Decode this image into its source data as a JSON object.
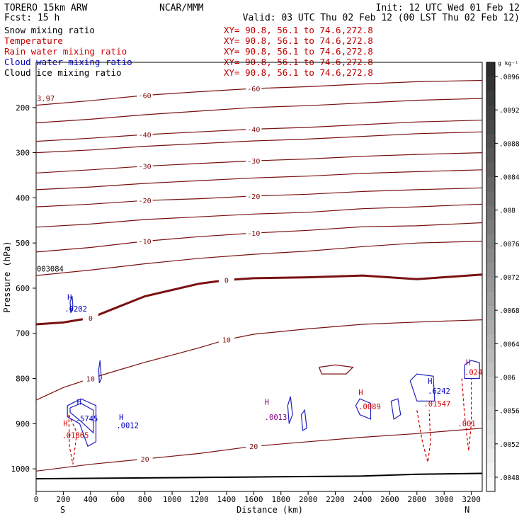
{
  "header": {
    "left_line1": "TORERO  15km ARW",
    "left_line2": "Fcst:   15 h",
    "center_line1": "NCAR/MMM",
    "right_line1": "Init: 12 UTC Wed 01 Feb 12",
    "right_line2": "Valid: 03 UTC Thu 02 Feb 12 (00 LST Thu 02 Feb 12)"
  },
  "fields": [
    {
      "name": "Snow mixing ratio",
      "xy": "XY=  90.8, 56.1 to  74.6,272.8",
      "color": "#000000"
    },
    {
      "name": "Temperature",
      "xy": "XY=  90.8, 56.1 to  74.6,272.8",
      "color": "#c00000"
    },
    {
      "name": "Rain water mixing ratio",
      "xy": "XY=  90.8, 56.1 to  74.6,272.8",
      "color": "#d00000"
    },
    {
      "name": "Cloud water mixing ratio",
      "xy": "XY=  90.8, 56.1 to  74.6,272.8",
      "color": "#0000c0"
    },
    {
      "name": "Cloud ice mixing ratio",
      "xy": "XY=  90.8, 56.1 to  74.6,272.8",
      "color": "#000000"
    }
  ],
  "chart_data": {
    "type": "contour",
    "xlabel": "Distance (km)",
    "ylabel": "Pressure (hPa)",
    "xlim": [
      0,
      3280
    ],
    "ylim": [
      1050,
      100
    ],
    "x_ticks": [
      0,
      200,
      400,
      600,
      800,
      1000,
      1200,
      1400,
      1600,
      1800,
      2000,
      2200,
      2400,
      2600,
      2800,
      3000,
      3200
    ],
    "y_ticks": [
      200,
      300,
      400,
      500,
      600,
      700,
      800,
      900,
      1000
    ],
    "x_end_labels": [
      "S",
      "N"
    ],
    "colorbar": {
      "unit": "g kg⁻¹",
      "ticks": [
        ".0048",
        ".0052",
        ".0056",
        ".006",
        ".0064",
        ".0068",
        ".0072",
        ".0076",
        ".008",
        ".0084",
        ".0088",
        ".0092",
        ".0096"
      ]
    },
    "temperature_contours": [
      {
        "value": -60,
        "label": "-60",
        "points": [
          [
            0,
            195
          ],
          [
            400,
            185
          ],
          [
            800,
            173
          ],
          [
            1200,
            165
          ],
          [
            1600,
            158
          ],
          [
            2000,
            154
          ],
          [
            2400,
            148
          ],
          [
            2800,
            143
          ],
          [
            3280,
            140
          ]
        ]
      },
      {
        "value": -50,
        "label": "",
        "points": [
          [
            0,
            234
          ],
          [
            400,
            226
          ],
          [
            800,
            216
          ],
          [
            1200,
            208
          ],
          [
            1600,
            200
          ],
          [
            2000,
            196
          ],
          [
            2400,
            190
          ],
          [
            2800,
            184
          ],
          [
            3280,
            180
          ]
        ]
      },
      {
        "value": -40,
        "label": "-40",
        "points": [
          [
            0,
            275
          ],
          [
            400,
            268
          ],
          [
            800,
            260
          ],
          [
            1200,
            254
          ],
          [
            1600,
            248
          ],
          [
            2000,
            244
          ],
          [
            2400,
            238
          ],
          [
            2800,
            232
          ],
          [
            3280,
            228
          ]
        ]
      },
      {
        "value": -35,
        "label": "",
        "points": [
          [
            0,
            300
          ],
          [
            400,
            294
          ],
          [
            800,
            286
          ],
          [
            1200,
            280
          ],
          [
            1600,
            274
          ],
          [
            2000,
            270
          ],
          [
            2400,
            264
          ],
          [
            2800,
            258
          ],
          [
            3280,
            254
          ]
        ]
      },
      {
        "value": -30,
        "label": "-30",
        "points": [
          [
            0,
            345
          ],
          [
            400,
            338
          ],
          [
            800,
            330
          ],
          [
            1200,
            324
          ],
          [
            1600,
            318
          ],
          [
            2000,
            314
          ],
          [
            2400,
            308
          ],
          [
            2800,
            304
          ],
          [
            3280,
            300
          ]
        ]
      },
      {
        "value": -25,
        "label": "",
        "points": [
          [
            0,
            382
          ],
          [
            400,
            376
          ],
          [
            800,
            368
          ],
          [
            1200,
            362
          ],
          [
            1600,
            356
          ],
          [
            2000,
            352
          ],
          [
            2400,
            346
          ],
          [
            2800,
            342
          ],
          [
            3280,
            338
          ]
        ]
      },
      {
        "value": -20,
        "label": "-20",
        "points": [
          [
            0,
            420
          ],
          [
            400,
            414
          ],
          [
            800,
            406
          ],
          [
            1200,
            402
          ],
          [
            1600,
            396
          ],
          [
            2000,
            392
          ],
          [
            2400,
            386
          ],
          [
            2800,
            382
          ],
          [
            3280,
            378
          ]
        ]
      },
      {
        "value": -15,
        "label": "",
        "points": [
          [
            0,
            465
          ],
          [
            400,
            458
          ],
          [
            800,
            448
          ],
          [
            1200,
            442
          ],
          [
            1600,
            436
          ],
          [
            2000,
            432
          ],
          [
            2400,
            424
          ],
          [
            2800,
            420
          ],
          [
            3280,
            414
          ]
        ]
      },
      {
        "value": -10,
        "label": "-10",
        "points": [
          [
            0,
            520
          ],
          [
            400,
            510
          ],
          [
            800,
            496
          ],
          [
            1200,
            486
          ],
          [
            1600,
            478
          ],
          [
            2000,
            472
          ],
          [
            2400,
            464
          ],
          [
            2800,
            462
          ],
          [
            3280,
            455
          ]
        ]
      },
      {
        "value": -5,
        "label": "",
        "points": [
          [
            0,
            572
          ],
          [
            400,
            560
          ],
          [
            800,
            546
          ],
          [
            1200,
            534
          ],
          [
            1600,
            525
          ],
          [
            2000,
            518
          ],
          [
            2400,
            508
          ],
          [
            2800,
            500
          ],
          [
            3280,
            496
          ]
        ]
      },
      {
        "value": 0,
        "label": "0",
        "points": [
          [
            0,
            680
          ],
          [
            200,
            676
          ],
          [
            400,
            666
          ],
          [
            600,
            642
          ],
          [
            800,
            618
          ],
          [
            1000,
            604
          ],
          [
            1200,
            590
          ],
          [
            1400,
            582
          ],
          [
            1600,
            578
          ],
          [
            2000,
            576
          ],
          [
            2400,
            572
          ],
          [
            2800,
            580
          ],
          [
            3280,
            570
          ]
        ]
      },
      {
        "value": 10,
        "label": "10",
        "points": [
          [
            0,
            848
          ],
          [
            200,
            820
          ],
          [
            400,
            800
          ],
          [
            600,
            782
          ],
          [
            800,
            764
          ],
          [
            1000,
            748
          ],
          [
            1200,
            732
          ],
          [
            1400,
            714
          ],
          [
            1600,
            702
          ],
          [
            2000,
            690
          ],
          [
            2400,
            680
          ],
          [
            2800,
            675
          ],
          [
            3280,
            670
          ]
        ]
      },
      {
        "value": 20,
        "label": "20",
        "points": [
          [
            0,
            1005
          ],
          [
            400,
            990
          ],
          [
            800,
            978
          ],
          [
            1200,
            966
          ],
          [
            1600,
            950
          ],
          [
            2000,
            940
          ],
          [
            2400,
            930
          ],
          [
            2800,
            922
          ],
          [
            3280,
            910
          ]
        ]
      }
    ],
    "ground": [
      [
        0,
        1022
      ],
      [
        800,
        1020
      ],
      [
        1600,
        1018
      ],
      [
        2400,
        1016
      ],
      [
        2800,
        1012
      ],
      [
        3280,
        1010
      ]
    ],
    "annotations": [
      {
        "text": "3.97",
        "x": 5,
        "y": 186,
        "color": "#800000"
      },
      {
        "text": "003084",
        "x": 5,
        "y": 563,
        "color": "#000000"
      },
      {
        "text": "H",
        "x": 230,
        "y": 626,
        "color": "#0000c0"
      },
      {
        "text": ".0202",
        "x": 210,
        "y": 652,
        "color": "#0000c0"
      },
      {
        "text": "H",
        "x": 300,
        "y": 858,
        "color": "#0000c0"
      },
      {
        "text": ".5745",
        "x": 290,
        "y": 895,
        "color": "#0000c0"
      },
      {
        "text": "H",
        "x": 610,
        "y": 892,
        "color": "#0000c0"
      },
      {
        "text": ".0012",
        "x": 590,
        "y": 910,
        "color": "#0000c0"
      },
      {
        "text": "H",
        "x": 200,
        "y": 905,
        "color": "#d00000"
      },
      {
        "text": ".01865",
        "x": 190,
        "y": 932,
        "color": "#d00000"
      },
      {
        "text": "H",
        "x": 1680,
        "y": 858,
        "color": "#800080"
      },
      {
        "text": ".0013",
        "x": 1680,
        "y": 892,
        "color": "#800080"
      },
      {
        "text": "H",
        "x": 2370,
        "y": 837,
        "color": "#d00000"
      },
      {
        "text": ".0089",
        "x": 2370,
        "y": 868,
        "color": "#d00000"
      },
      {
        "text": "H",
        "x": 2880,
        "y": 812,
        "color": "#0000c0"
      },
      {
        "text": ".6242",
        "x": 2880,
        "y": 834,
        "color": "#0000c0"
      },
      {
        "text": ".01547",
        "x": 2850,
        "y": 862,
        "color": "#d00000"
      },
      {
        "text": ".001",
        "x": 3100,
        "y": 906,
        "color": "#d00000"
      },
      {
        "text": "H",
        "x": 3160,
        "y": 770,
        "color": "#800080"
      },
      {
        "text": ".024",
        "x": 3150,
        "y": 792,
        "color": "#d00000"
      }
    ],
    "cloud_water_contours": [
      {
        "points": [
          [
            250,
            630
          ],
          [
            265,
            618
          ],
          [
            270,
            640
          ],
          [
            255,
            655
          ],
          [
            250,
            630
          ]
        ]
      },
      {
        "points": [
          [
            230,
            860
          ],
          [
            330,
            845
          ],
          [
            440,
            860
          ],
          [
            440,
            940
          ],
          [
            380,
            950
          ],
          [
            320,
            900
          ],
          [
            230,
            885
          ],
          [
            230,
            860
          ]
        ]
      },
      {
        "points": [
          [
            250,
            865
          ],
          [
            330,
            855
          ],
          [
            420,
            870
          ],
          [
            420,
            920
          ],
          [
            330,
            895
          ],
          [
            250,
            875
          ],
          [
            250,
            865
          ]
        ]
      },
      {
        "points": [
          [
            460,
            780
          ],
          [
            470,
            760
          ],
          [
            480,
            800
          ],
          [
            465,
            810
          ],
          [
            460,
            780
          ]
        ]
      },
      {
        "points": [
          [
            1850,
            860
          ],
          [
            1870,
            840
          ],
          [
            1885,
            880
          ],
          [
            1860,
            900
          ],
          [
            1850,
            860
          ]
        ]
      },
      {
        "points": [
          [
            1950,
            880
          ],
          [
            1975,
            870
          ],
          [
            1990,
            910
          ],
          [
            1960,
            915
          ],
          [
            1950,
            880
          ]
        ]
      },
      {
        "points": [
          [
            2350,
            860
          ],
          [
            2380,
            845
          ],
          [
            2460,
            855
          ],
          [
            2460,
            890
          ],
          [
            2380,
            880
          ],
          [
            2350,
            860
          ]
        ]
      },
      {
        "points": [
          [
            2610,
            850
          ],
          [
            2660,
            845
          ],
          [
            2680,
            880
          ],
          [
            2630,
            890
          ],
          [
            2610,
            850
          ]
        ]
      },
      {
        "points": [
          [
            2750,
            805
          ],
          [
            2800,
            790
          ],
          [
            2920,
            795
          ],
          [
            2930,
            850
          ],
          [
            2800,
            850
          ],
          [
            2750,
            805
          ]
        ]
      },
      {
        "points": [
          [
            3150,
            770
          ],
          [
            3200,
            760
          ],
          [
            3260,
            765
          ],
          [
            3260,
            800
          ],
          [
            3150,
            800
          ],
          [
            3150,
            770
          ]
        ]
      }
    ],
    "rain_contours": [
      {
        "points": [
          [
            240,
            880
          ],
          [
            300,
            920
          ],
          [
            270,
            990
          ],
          [
            245,
            950
          ],
          [
            240,
            880
          ]
        ]
      },
      {
        "points": [
          [
            2800,
            870
          ],
          [
            2840,
            940
          ],
          [
            2880,
            985
          ],
          [
            2900,
            940
          ],
          [
            2890,
            870
          ]
        ]
      },
      {
        "points": [
          [
            3130,
            800
          ],
          [
            3150,
            880
          ],
          [
            3180,
            960
          ],
          [
            3200,
            900
          ],
          [
            3200,
            800
          ]
        ]
      }
    ],
    "snow_contours": [
      {
        "points": [
          [
            2080,
            775
          ],
          [
            2200,
            770
          ],
          [
            2330,
            775
          ],
          [
            2280,
            790
          ],
          [
            2100,
            790
          ],
          [
            2080,
            775
          ]
        ]
      }
    ]
  }
}
